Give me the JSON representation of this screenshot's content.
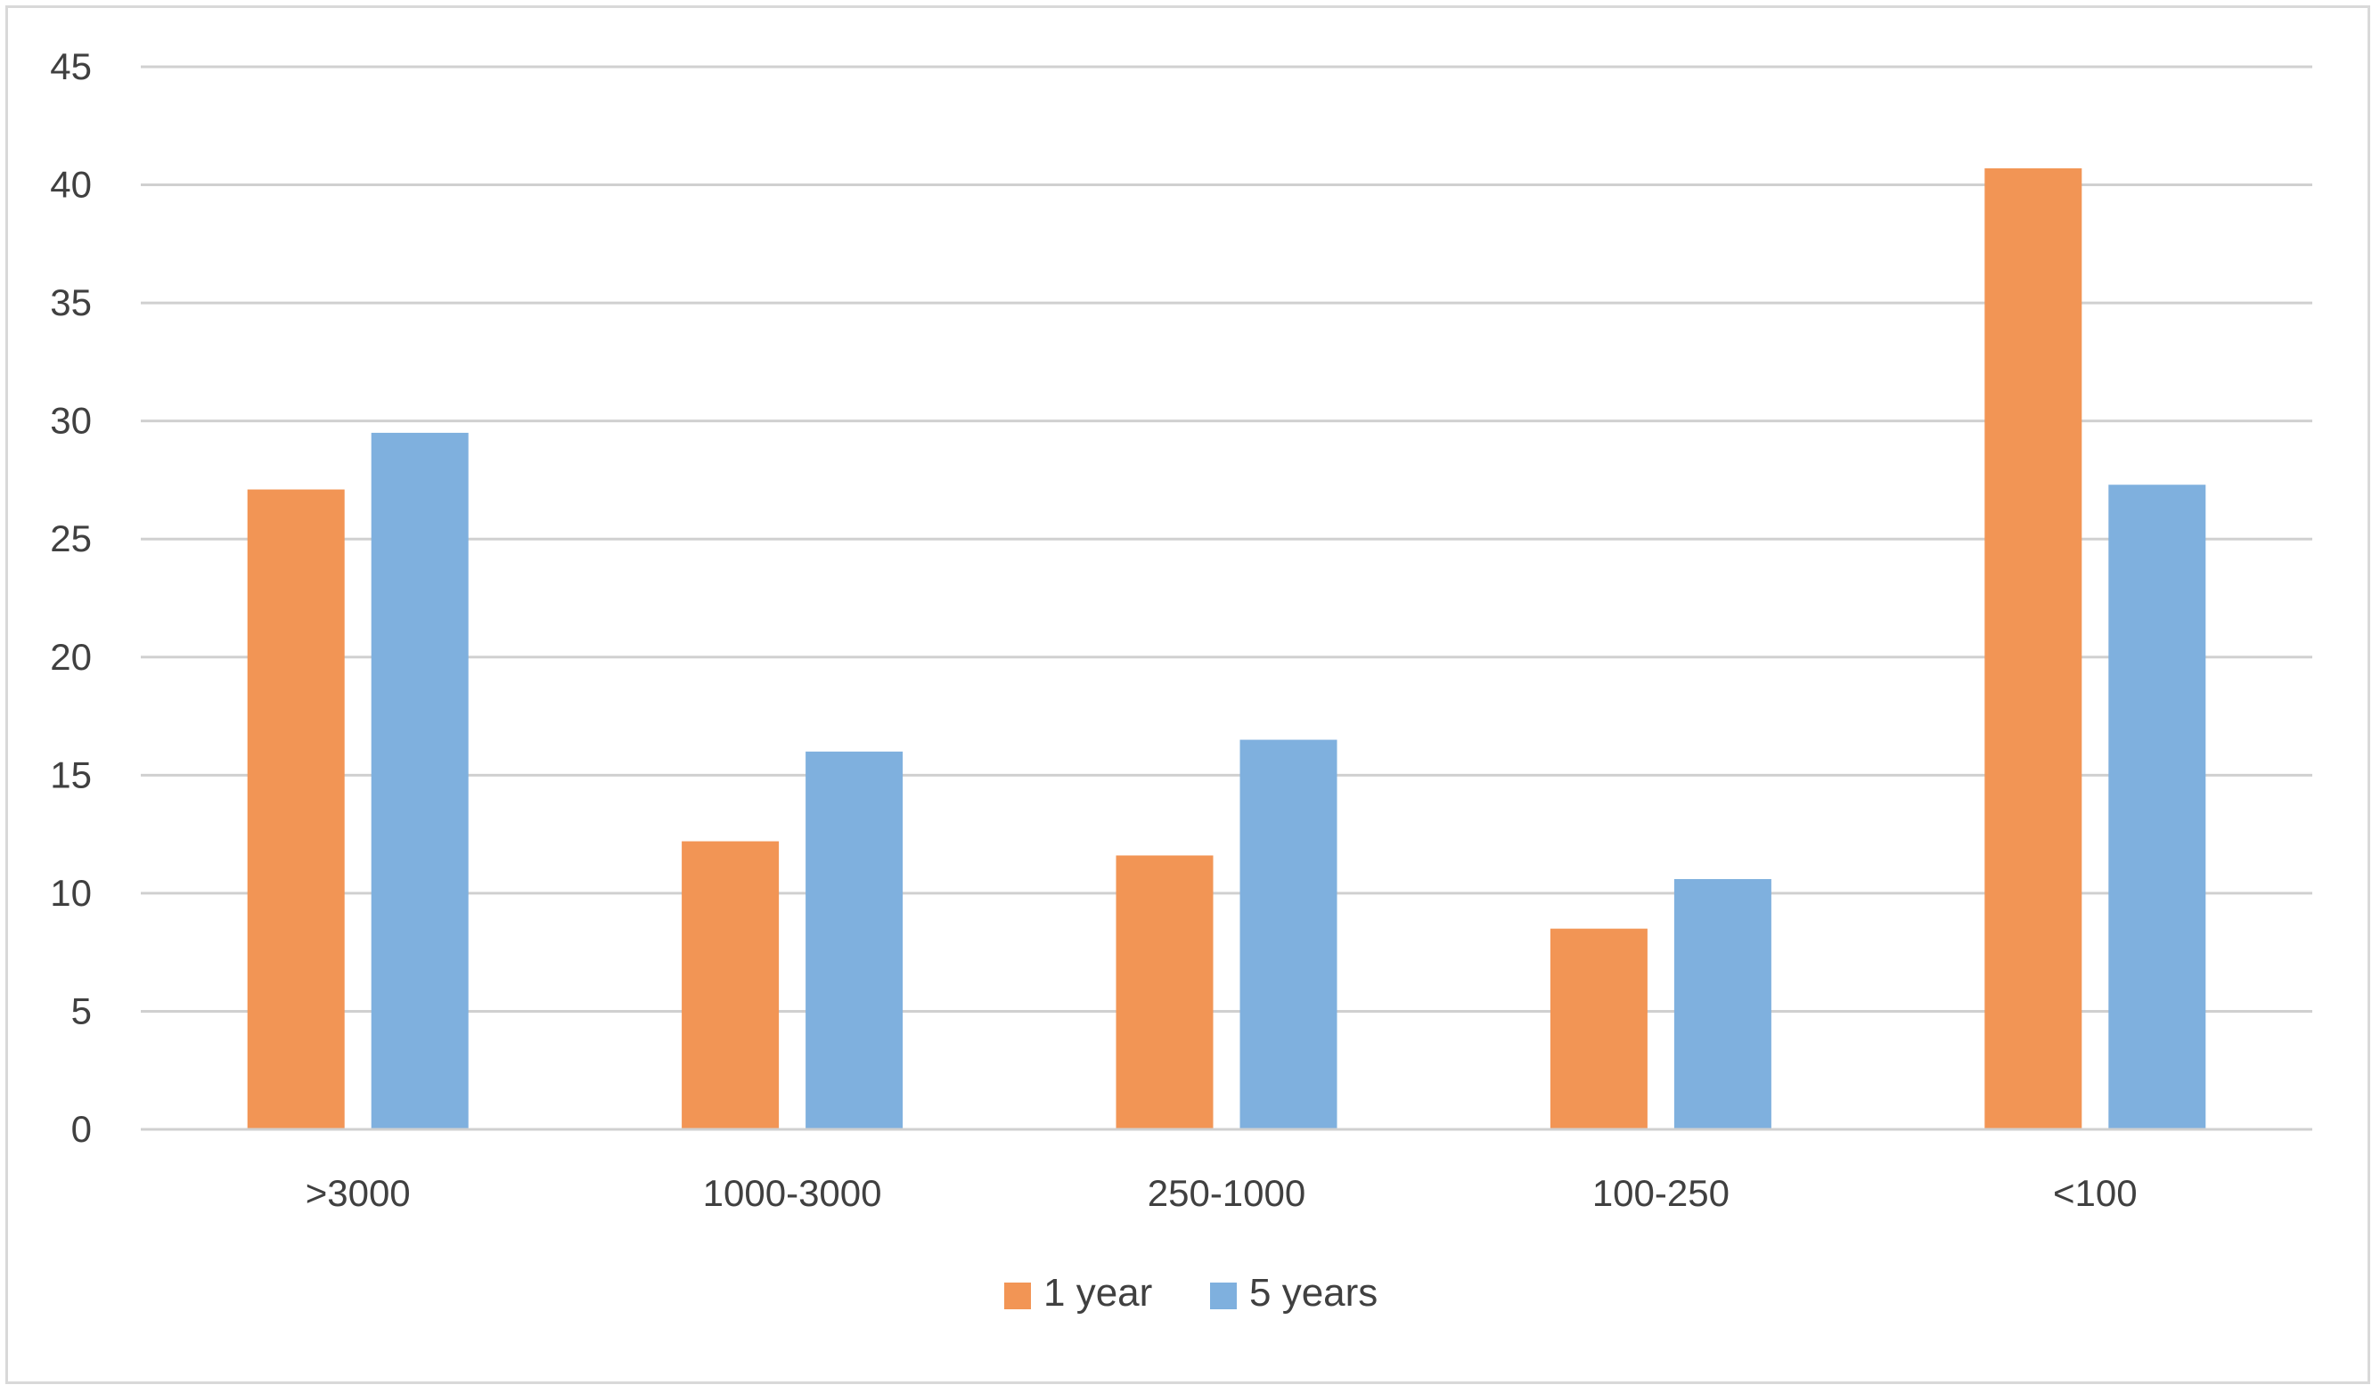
{
  "chart_data": {
    "type": "bar",
    "title": "",
    "xlabel": "",
    "ylabel": "",
    "categories": [
      ">3000",
      "1000-3000",
      "250-1000",
      "100-250",
      "<100"
    ],
    "series": [
      {
        "name": "1 year",
        "color": "#f29555",
        "values": [
          27.1,
          12.2,
          11.6,
          8.5,
          40.7
        ]
      },
      {
        "name": "5 years",
        "color": "#7fb0de",
        "values": [
          29.5,
          16.0,
          16.5,
          10.6,
          27.3
        ]
      }
    ],
    "ylim": [
      0,
      45
    ],
    "yticks": [
      0,
      5,
      10,
      15,
      20,
      25,
      30,
      35,
      40,
      45
    ],
    "grid": true,
    "legend_position": "bottom"
  }
}
